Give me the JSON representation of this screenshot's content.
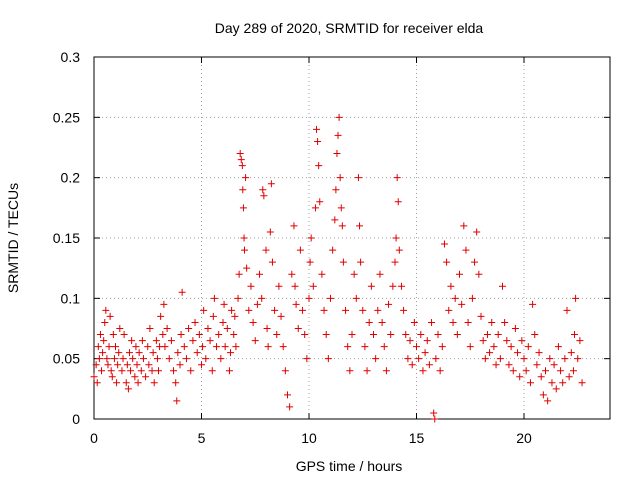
{
  "chart_data": {
    "type": "scatter",
    "title": "Day 289 of 2020, SRMTID for receiver elda",
    "xlabel": "GPS time / hours",
    "ylabel": "SRMTID / TECUs",
    "xlim": [
      0,
      24
    ],
    "ylim": [
      0,
      0.3
    ],
    "x_ticks": [
      0,
      5,
      10,
      15,
      20
    ],
    "x_tick_labels": [
      "0",
      "5",
      "10",
      "15",
      "20"
    ],
    "y_ticks": [
      0,
      0.05,
      0.1,
      0.15,
      0.2,
      0.25,
      0.3
    ],
    "y_tick_labels": [
      "0",
      "0.05",
      "0.1",
      "0.15",
      "0.2",
      "0.25",
      "0.3"
    ],
    "grid": true,
    "marker": "plus",
    "color": "#e00000",
    "series": [
      {
        "name": "SRMTID",
        "points": [
          [
            0.0,
            0.035
          ],
          [
            0.1,
            0.045
          ],
          [
            0.15,
            0.03
          ],
          [
            0.2,
            0.06
          ],
          [
            0.25,
            0.05
          ],
          [
            0.3,
            0.07
          ],
          [
            0.35,
            0.04
          ],
          [
            0.4,
            0.055
          ],
          [
            0.45,
            0.065
          ],
          [
            0.5,
            0.08
          ],
          [
            0.55,
            0.09
          ],
          [
            0.6,
            0.05
          ],
          [
            0.65,
            0.045
          ],
          [
            0.7,
            0.06
          ],
          [
            0.75,
            0.085
          ],
          [
            0.8,
            0.04
          ],
          [
            0.85,
            0.035
          ],
          [
            0.9,
            0.07
          ],
          [
            0.95,
            0.05
          ],
          [
            1.0,
            0.06
          ],
          [
            1.05,
            0.03
          ],
          [
            1.1,
            0.045
          ],
          [
            1.15,
            0.055
          ],
          [
            1.2,
            0.075
          ],
          [
            1.3,
            0.04
          ],
          [
            1.35,
            0.05
          ],
          [
            1.4,
            0.07
          ],
          [
            1.5,
            0.03
          ],
          [
            1.55,
            0.045
          ],
          [
            1.6,
            0.025
          ],
          [
            1.65,
            0.055
          ],
          [
            1.7,
            0.04
          ],
          [
            1.75,
            0.065
          ],
          [
            1.8,
            0.05
          ],
          [
            1.9,
            0.035
          ],
          [
            1.95,
            0.06
          ],
          [
            2.0,
            0.045
          ],
          [
            2.05,
            0.03
          ],
          [
            2.1,
            0.055
          ],
          [
            2.2,
            0.04
          ],
          [
            2.25,
            0.065
          ],
          [
            2.3,
            0.05
          ],
          [
            2.4,
            0.035
          ],
          [
            2.5,
            0.06
          ],
          [
            2.55,
            0.045
          ],
          [
            2.6,
            0.075
          ],
          [
            2.7,
            0.04
          ],
          [
            2.75,
            0.055
          ],
          [
            2.8,
            0.03
          ],
          [
            2.9,
            0.065
          ],
          [
            2.95,
            0.05
          ],
          [
            3.0,
            0.04
          ],
          [
            3.05,
            0.06
          ],
          [
            3.1,
            0.085
          ],
          [
            3.2,
            0.07
          ],
          [
            3.25,
            0.095
          ],
          [
            3.3,
            0.06
          ],
          [
            3.4,
            0.075
          ],
          [
            3.5,
            0.05
          ],
          [
            3.6,
            0.065
          ],
          [
            3.7,
            0.04
          ],
          [
            3.8,
            0.03
          ],
          [
            3.85,
            0.015
          ],
          [
            3.9,
            0.055
          ],
          [
            4.0,
            0.045
          ],
          [
            4.05,
            0.07
          ],
          [
            4.1,
            0.105
          ],
          [
            4.2,
            0.06
          ],
          [
            4.3,
            0.05
          ],
          [
            4.4,
            0.075
          ],
          [
            4.5,
            0.04
          ],
          [
            4.6,
            0.065
          ],
          [
            4.7,
            0.08
          ],
          [
            4.8,
            0.055
          ],
          [
            4.9,
            0.07
          ],
          [
            5.0,
            0.045
          ],
          [
            5.05,
            0.06
          ],
          [
            5.1,
            0.09
          ],
          [
            5.2,
            0.05
          ],
          [
            5.3,
            0.075
          ],
          [
            5.4,
            0.065
          ],
          [
            5.5,
            0.04
          ],
          [
            5.55,
            0.085
          ],
          [
            5.6,
            0.1
          ],
          [
            5.7,
            0.06
          ],
          [
            5.8,
            0.07
          ],
          [
            5.9,
            0.05
          ],
          [
            6.0,
            0.08
          ],
          [
            6.05,
            0.095
          ],
          [
            6.1,
            0.06
          ],
          [
            6.2,
            0.075
          ],
          [
            6.3,
            0.04
          ],
          [
            6.35,
            0.055
          ],
          [
            6.4,
            0.09
          ],
          [
            6.5,
            0.07
          ],
          [
            6.55,
            0.085
          ],
          [
            6.6,
            0.06
          ],
          [
            6.7,
            0.1
          ],
          [
            6.75,
            0.12
          ],
          [
            6.8,
            0.22
          ],
          [
            6.85,
            0.215
          ],
          [
            6.9,
            0.21
          ],
          [
            6.92,
            0.19
          ],
          [
            6.95,
            0.175
          ],
          [
            6.98,
            0.15
          ],
          [
            7.0,
            0.14
          ],
          [
            7.05,
            0.2
          ],
          [
            7.1,
            0.125
          ],
          [
            7.2,
            0.09
          ],
          [
            7.3,
            0.11
          ],
          [
            7.4,
            0.08
          ],
          [
            7.5,
            0.065
          ],
          [
            7.6,
            0.095
          ],
          [
            7.7,
            0.12
          ],
          [
            7.8,
            0.1
          ],
          [
            7.85,
            0.19
          ],
          [
            7.9,
            0.185
          ],
          [
            8.0,
            0.14
          ],
          [
            8.05,
            0.075
          ],
          [
            8.1,
            0.06
          ],
          [
            8.2,
            0.155
          ],
          [
            8.25,
            0.195
          ],
          [
            8.3,
            0.13
          ],
          [
            8.4,
            0.09
          ],
          [
            8.5,
            0.07
          ],
          [
            8.6,
            0.11
          ],
          [
            8.7,
            0.085
          ],
          [
            8.8,
            0.06
          ],
          [
            8.9,
            0.04
          ],
          [
            9.0,
            0.02
          ],
          [
            9.1,
            0.01
          ],
          [
            9.2,
            0.12
          ],
          [
            9.3,
            0.16
          ],
          [
            9.35,
            0.11
          ],
          [
            9.4,
            0.095
          ],
          [
            9.5,
            0.075
          ],
          [
            9.6,
            0.14
          ],
          [
            9.7,
            0.09
          ],
          [
            9.8,
            0.07
          ],
          [
            9.9,
            0.05
          ],
          [
            10.0,
            0.1
          ],
          [
            10.05,
            0.13
          ],
          [
            10.1,
            0.15
          ],
          [
            10.2,
            0.11
          ],
          [
            10.3,
            0.175
          ],
          [
            10.35,
            0.24
          ],
          [
            10.4,
            0.23
          ],
          [
            10.45,
            0.21
          ],
          [
            10.5,
            0.18
          ],
          [
            10.6,
            0.12
          ],
          [
            10.7,
            0.09
          ],
          [
            10.8,
            0.07
          ],
          [
            10.9,
            0.05
          ],
          [
            11.0,
            0.1
          ],
          [
            11.1,
            0.14
          ],
          [
            11.2,
            0.165
          ],
          [
            11.25,
            0.19
          ],
          [
            11.3,
            0.22
          ],
          [
            11.35,
            0.235
          ],
          [
            11.4,
            0.25
          ],
          [
            11.45,
            0.2
          ],
          [
            11.5,
            0.175
          ],
          [
            11.55,
            0.16
          ],
          [
            11.6,
            0.13
          ],
          [
            11.7,
            0.09
          ],
          [
            11.8,
            0.06
          ],
          [
            11.9,
            0.04
          ],
          [
            12.0,
            0.07
          ],
          [
            12.1,
            0.12
          ],
          [
            12.2,
            0.1
          ],
          [
            12.3,
            0.2
          ],
          [
            12.35,
            0.16
          ],
          [
            12.4,
            0.13
          ],
          [
            12.5,
            0.09
          ],
          [
            12.6,
            0.06
          ],
          [
            12.7,
            0.04
          ],
          [
            12.8,
            0.08
          ],
          [
            12.9,
            0.11
          ],
          [
            13.0,
            0.07
          ],
          [
            13.1,
            0.05
          ],
          [
            13.2,
            0.09
          ],
          [
            13.3,
            0.12
          ],
          [
            13.4,
            0.08
          ],
          [
            13.5,
            0.06
          ],
          [
            13.6,
            0.04
          ],
          [
            13.7,
            0.095
          ],
          [
            13.8,
            0.07
          ],
          [
            13.9,
            0.11
          ],
          [
            14.0,
            0.13
          ],
          [
            14.05,
            0.15
          ],
          [
            14.1,
            0.2
          ],
          [
            14.15,
            0.18
          ],
          [
            14.2,
            0.14
          ],
          [
            14.3,
            0.11
          ],
          [
            14.4,
            0.09
          ],
          [
            14.5,
            0.07
          ],
          [
            14.6,
            0.05
          ],
          [
            14.7,
            0.065
          ],
          [
            14.8,
            0.045
          ],
          [
            14.9,
            0.08
          ],
          [
            15.0,
            0.06
          ],
          [
            15.1,
            0.05
          ],
          [
            15.2,
            0.07
          ],
          [
            15.3,
            0.04
          ],
          [
            15.4,
            0.055
          ],
          [
            15.5,
            0.065
          ],
          [
            15.6,
            0.045
          ],
          [
            15.7,
            0.08
          ],
          [
            15.8,
            0.005
          ],
          [
            15.85,
            0.0
          ],
          [
            15.9,
            0.05
          ],
          [
            16.0,
            0.07
          ],
          [
            16.1,
            0.04
          ],
          [
            16.2,
            0.06
          ],
          [
            16.3,
            0.145
          ],
          [
            16.4,
            0.13
          ],
          [
            16.5,
            0.09
          ],
          [
            16.6,
            0.11
          ],
          [
            16.7,
            0.08
          ],
          [
            16.8,
            0.1
          ],
          [
            16.9,
            0.07
          ],
          [
            17.0,
            0.12
          ],
          [
            17.1,
            0.095
          ],
          [
            17.2,
            0.16
          ],
          [
            17.3,
            0.14
          ],
          [
            17.4,
            0.08
          ],
          [
            17.5,
            0.06
          ],
          [
            17.6,
            0.1
          ],
          [
            17.7,
            0.13
          ],
          [
            17.8,
            0.155
          ],
          [
            17.9,
            0.12
          ],
          [
            18.0,
            0.085
          ],
          [
            18.1,
            0.065
          ],
          [
            18.2,
            0.05
          ],
          [
            18.3,
            0.07
          ],
          [
            18.4,
            0.055
          ],
          [
            18.5,
            0.08
          ],
          [
            18.6,
            0.06
          ],
          [
            18.7,
            0.045
          ],
          [
            18.8,
            0.07
          ],
          [
            18.9,
            0.05
          ],
          [
            19.0,
            0.11
          ],
          [
            19.1,
            0.08
          ],
          [
            19.2,
            0.065
          ],
          [
            19.3,
            0.045
          ],
          [
            19.4,
            0.06
          ],
          [
            19.5,
            0.04
          ],
          [
            19.6,
            0.075
          ],
          [
            19.7,
            0.055
          ],
          [
            19.8,
            0.035
          ],
          [
            19.9,
            0.065
          ],
          [
            20.0,
            0.05
          ],
          [
            20.1,
            0.04
          ],
          [
            20.2,
            0.06
          ],
          [
            20.3,
            0.03
          ],
          [
            20.4,
            0.095
          ],
          [
            20.5,
            0.07
          ],
          [
            20.6,
            0.045
          ],
          [
            20.7,
            0.055
          ],
          [
            20.8,
            0.035
          ],
          [
            20.9,
            0.02
          ],
          [
            21.0,
            0.04
          ],
          [
            21.1,
            0.015
          ],
          [
            21.2,
            0.05
          ],
          [
            21.3,
            0.03
          ],
          [
            21.4,
            0.045
          ],
          [
            21.5,
            0.025
          ],
          [
            21.6,
            0.06
          ],
          [
            21.7,
            0.04
          ],
          [
            21.8,
            0.03
          ],
          [
            21.9,
            0.05
          ],
          [
            22.0,
            0.09
          ],
          [
            22.1,
            0.035
          ],
          [
            22.2,
            0.055
          ],
          [
            22.3,
            0.04
          ],
          [
            22.35,
            0.07
          ],
          [
            22.4,
            0.1
          ],
          [
            22.5,
            0.05
          ],
          [
            22.6,
            0.065
          ],
          [
            22.7,
            0.03
          ]
        ]
      }
    ]
  }
}
